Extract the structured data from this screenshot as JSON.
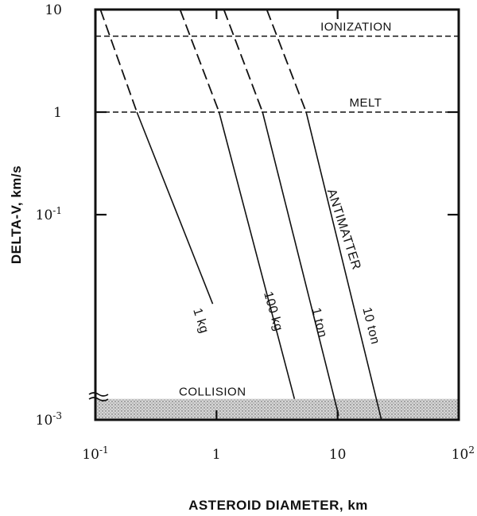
{
  "chart_data": {
    "type": "line",
    "title": "",
    "xlabel": "ASTEROID DIAMETER,  km",
    "ylabel": "DELTA-V,  km/s",
    "x_scale": "log",
    "y_scale": "log",
    "xlim": [
      0.1,
      100
    ],
    "ylim": [
      0.001,
      10
    ],
    "grid": false,
    "x_ticks": [
      {
        "value": 0.1,
        "base": "10",
        "exp": "-1"
      },
      {
        "value": 1,
        "base": "1",
        "exp": ""
      },
      {
        "value": 10,
        "base": "10",
        "exp": ""
      },
      {
        "value": 100,
        "base": "10",
        "exp": "2"
      }
    ],
    "y_ticks": [
      {
        "value": 10,
        "base": "10",
        "exp": ""
      },
      {
        "value": 1,
        "base": "1",
        "exp": ""
      },
      {
        "value": 0.1,
        "base": "10",
        "exp": "-1"
      },
      {
        "value": 0.001,
        "base": "10",
        "exp": "-3"
      }
    ],
    "reference_lines": [
      {
        "label": "IONIZATION",
        "y": 5.5,
        "style": "dashed"
      },
      {
        "label": "MELT",
        "y": 1.0,
        "style": "dashed"
      }
    ],
    "bands": [
      {
        "label": "COLLISION",
        "y_range": [
          0.001,
          0.0016
        ],
        "style": "stipple"
      }
    ],
    "group_label": "ANTIMATTER",
    "series": [
      {
        "name": "1 kg",
        "x_dashed": [
          0.11,
          0.22
        ],
        "x_solid_end": 0.93,
        "y_dashed": [
          10,
          1.0
        ],
        "y_solid_end": 0.0135
      },
      {
        "name": "100 kg",
        "x_dashed": [
          0.5,
          1.05
        ],
        "x_solid_end": 4.4,
        "y_dashed": [
          10,
          1.0
        ],
        "y_solid_end": 0.0016
      },
      {
        "name": "1 ton",
        "x_dashed": [
          1.15,
          2.4
        ],
        "x_solid_end": 10.2,
        "y_dashed": [
          10,
          1.0
        ],
        "y_solid_end": 0.0011
      },
      {
        "name": "10 ton",
        "x_dashed": [
          2.6,
          5.5
        ],
        "x_solid_end": 23,
        "y_dashed": [
          10,
          1.0
        ],
        "y_solid_end": 0.001
      }
    ]
  }
}
